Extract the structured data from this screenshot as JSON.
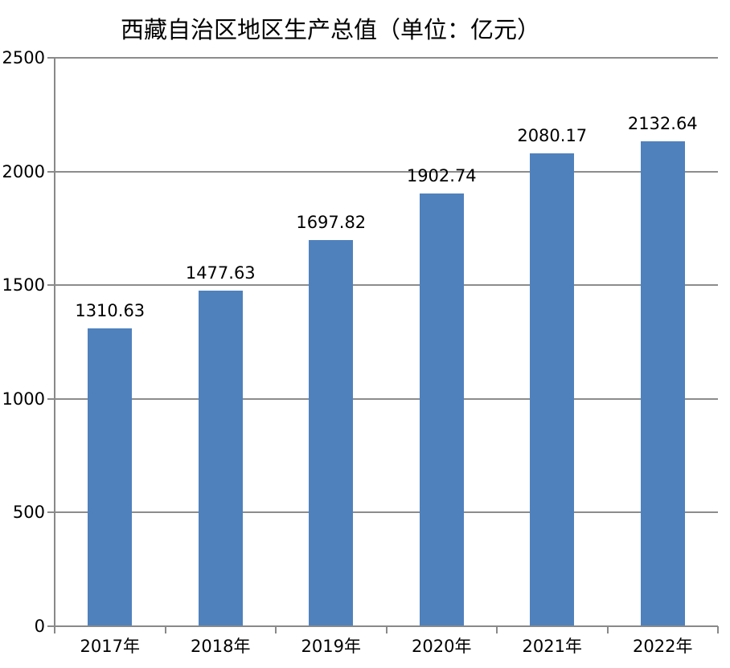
{
  "chart_data": {
    "type": "bar",
    "title": "西藏自治区地区生产总值（单位：亿元）",
    "categories": [
      "2017年",
      "2018年",
      "2019年",
      "2020年",
      "2021年",
      "2022年"
    ],
    "values": [
      1310.63,
      1477.63,
      1697.82,
      1902.74,
      2080.17,
      2132.64
    ],
    "data_labels": [
      "1310.63",
      "1477.63",
      "1697.82",
      "1902.74",
      "2080.17",
      "2132.64"
    ],
    "series_name": "地区生产总值",
    "xlabel": "",
    "ylabel": "",
    "ylim": [
      0,
      2500
    ],
    "yticks": [
      0,
      500,
      1000,
      1500,
      2000,
      2500
    ],
    "grid": true,
    "legend_position": "none",
    "colors": {
      "bar": "#4F81BD",
      "gridline": "#8C8C8C",
      "axis": "#898989",
      "tick": "#898989",
      "text": "#000000",
      "background": "#FFFFFF"
    }
  }
}
